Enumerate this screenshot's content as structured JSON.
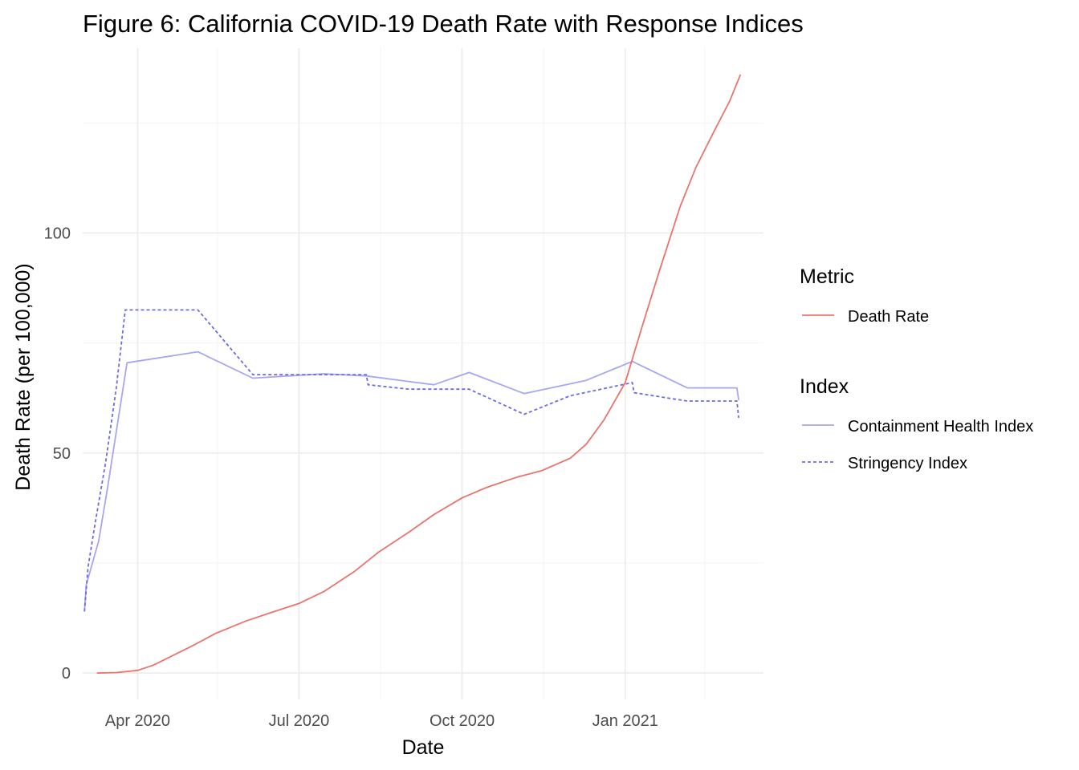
{
  "chart_data": {
    "type": "line",
    "title": "Figure 6: California COVID-19 Death Rate with Response Indices",
    "xlabel": "Date",
    "ylabel": "Death Rate (per 100,000)",
    "x_type": "date",
    "xlim": [
      "2020-03-01",
      "2021-03-20"
    ],
    "ylim": [
      -6,
      142
    ],
    "x_ticks": [
      {
        "date": "2020-04-01",
        "label": "Apr 2020"
      },
      {
        "date": "2020-07-01",
        "label": "Jul 2020"
      },
      {
        "date": "2020-10-01",
        "label": "Oct 2020"
      },
      {
        "date": "2021-01-01",
        "label": "Jan 2021"
      }
    ],
    "x_minor_ticks": [
      "2020-05-16",
      "2020-08-16",
      "2020-11-16",
      "2021-02-15"
    ],
    "y_ticks": [
      0,
      50,
      100
    ],
    "y_minor_ticks": [
      25,
      75,
      125
    ],
    "grid": true,
    "legend_position": "right",
    "legends": [
      {
        "title": "Metric",
        "entries": [
          {
            "label": "Death Rate",
            "color": "#e8746c",
            "dash": "solid"
          }
        ]
      },
      {
        "title": "Index",
        "entries": [
          {
            "label": "Containment Health Index",
            "color": "#a6a6f2",
            "dash": "solid"
          },
          {
            "label": "Stringency Index",
            "color": "#6b6be6",
            "dash": "dashed"
          }
        ]
      }
    ],
    "series": [
      {
        "name": "Death Rate",
        "color": "#e8746c",
        "dash": "solid",
        "points": [
          [
            "2020-03-09",
            0
          ],
          [
            "2020-03-20",
            0.1
          ],
          [
            "2020-04-01",
            0.6
          ],
          [
            "2020-04-10",
            1.8
          ],
          [
            "2020-04-20",
            3.8
          ],
          [
            "2020-05-01",
            6.0
          ],
          [
            "2020-05-15",
            9.0
          ],
          [
            "2020-06-01",
            11.8
          ],
          [
            "2020-06-15",
            13.7
          ],
          [
            "2020-07-01",
            15.8
          ],
          [
            "2020-07-15",
            18.5
          ],
          [
            "2020-08-01",
            23.0
          ],
          [
            "2020-08-15",
            27.5
          ],
          [
            "2020-09-01",
            32.0
          ],
          [
            "2020-09-15",
            36.0
          ],
          [
            "2020-10-01",
            39.8
          ],
          [
            "2020-10-15",
            42.2
          ],
          [
            "2020-11-01",
            44.5
          ],
          [
            "2020-11-15",
            46.0
          ],
          [
            "2020-12-01",
            48.8
          ],
          [
            "2020-12-10",
            52.0
          ],
          [
            "2020-12-20",
            57.5
          ],
          [
            "2021-01-01",
            66.0
          ],
          [
            "2021-01-10",
            78.0
          ],
          [
            "2021-01-20",
            91.0
          ],
          [
            "2021-02-01",
            106.0
          ],
          [
            "2021-02-10",
            115.0
          ],
          [
            "2021-02-20",
            123.0
          ],
          [
            "2021-03-01",
            130.0
          ],
          [
            "2021-03-07",
            136.0
          ]
        ]
      },
      {
        "name": "Containment Health Index",
        "color": "#a6a6f2",
        "dash": "solid",
        "points": [
          [
            "2020-03-02",
            14.0
          ],
          [
            "2020-03-03",
            20.0
          ],
          [
            "2020-03-10",
            30.0
          ],
          [
            "2020-03-15",
            42.0
          ],
          [
            "2020-03-20",
            55.0
          ],
          [
            "2020-03-26",
            70.5
          ],
          [
            "2020-05-05",
            73.0
          ],
          [
            "2020-06-05",
            67.0
          ],
          [
            "2020-07-15",
            68.0
          ],
          [
            "2020-08-08",
            67.5
          ],
          [
            "2020-09-15",
            65.5
          ],
          [
            "2020-10-05",
            68.3
          ],
          [
            "2020-11-05",
            63.5
          ],
          [
            "2020-12-10",
            66.5
          ],
          [
            "2021-01-05",
            70.8
          ],
          [
            "2021-02-05",
            64.8
          ],
          [
            "2021-03-05",
            64.8
          ],
          [
            "2021-03-06",
            62.0
          ]
        ]
      },
      {
        "name": "Stringency Index",
        "color": "#6b6be6",
        "dash": "dashed",
        "points": [
          [
            "2020-03-02",
            14.0
          ],
          [
            "2020-03-04",
            24.0
          ],
          [
            "2020-03-08",
            34.0
          ],
          [
            "2020-03-14",
            48.0
          ],
          [
            "2020-03-20",
            65.0
          ],
          [
            "2020-03-25",
            82.5
          ],
          [
            "2020-05-05",
            82.5
          ],
          [
            "2020-06-05",
            67.8
          ],
          [
            "2020-08-08",
            67.8
          ],
          [
            "2020-08-09",
            65.5
          ],
          [
            "2020-09-01",
            64.5
          ],
          [
            "2020-10-05",
            64.5
          ],
          [
            "2020-11-05",
            58.8
          ],
          [
            "2020-12-01",
            63.0
          ],
          [
            "2021-01-05",
            66.0
          ],
          [
            "2021-01-06",
            63.7
          ],
          [
            "2021-02-05",
            61.8
          ],
          [
            "2021-03-05",
            61.8
          ],
          [
            "2021-03-06",
            58.0
          ]
        ]
      }
    ]
  }
}
